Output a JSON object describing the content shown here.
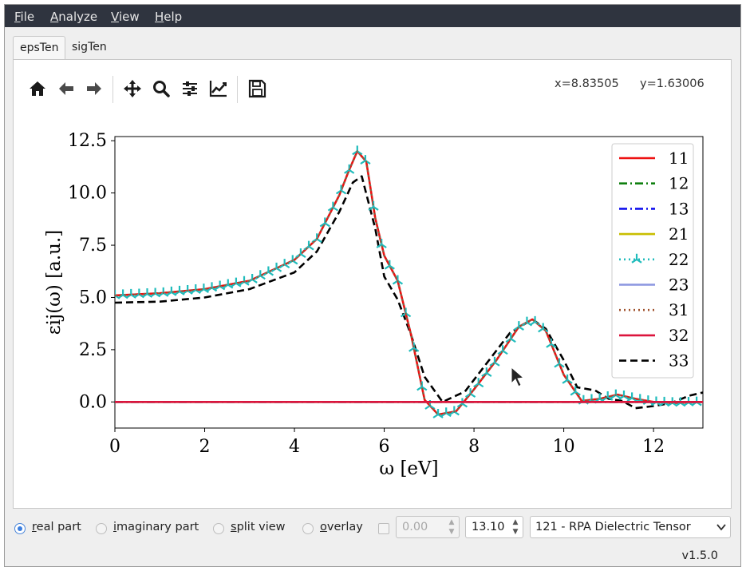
{
  "menubar": {
    "items": [
      {
        "first": "F",
        "rest": "ile"
      },
      {
        "first": "A",
        "rest": "nalyze"
      },
      {
        "first": "V",
        "rest": "iew"
      },
      {
        "first": "H",
        "rest": "elp"
      }
    ]
  },
  "tabs": [
    {
      "label": "epsTen",
      "active": true
    },
    {
      "label": "sigTen",
      "active": false
    }
  ],
  "toolbar": {
    "icons": [
      "home-icon",
      "back-arrow-icon",
      "forward-arrow-icon",
      "pan-icon",
      "zoom-icon",
      "configure-subplots-icon",
      "edit-axis-icon",
      "save-icon"
    ],
    "coord_x": "x=8.83505",
    "coord_y": "y=1.63006"
  },
  "chart_data": {
    "type": "line",
    "xlabel": "ω [eV]",
    "ylabel": "εij(ω) [a.u.]",
    "xlim": [
      0,
      13.1
    ],
    "ylim": [
      -1.25,
      12.7
    ],
    "xticks": [
      "0",
      "2",
      "4",
      "6",
      "8",
      "10",
      "12"
    ],
    "yticks": [
      "0.0",
      "2.5",
      "5.0",
      "7.5",
      "10.0",
      "12.5"
    ],
    "xtick_values": [
      0,
      2,
      4,
      6,
      8,
      10,
      12
    ],
    "ytick_values": [
      0,
      2.5,
      5,
      7.5,
      10,
      12.5
    ],
    "legend_position": "top-right",
    "series": [
      {
        "name": "11",
        "color": "#ee1111",
        "style": "solid",
        "x": [
          0,
          1,
          2,
          3,
          4,
          4.5,
          5,
          5.2,
          5.4,
          5.6,
          5.8,
          6,
          6.3,
          6.6,
          6.9,
          7.2,
          7.6,
          8,
          8.5,
          9,
          9.3,
          9.6,
          10,
          10.4,
          10.8,
          11.2,
          11.6,
          12,
          12.5,
          13.1
        ],
        "y": [
          5.1,
          5.2,
          5.4,
          5.8,
          6.8,
          7.8,
          9.9,
          11.0,
          12.0,
          11.5,
          8.8,
          7.0,
          5.8,
          3.2,
          0.1,
          -0.6,
          -0.45,
          0.6,
          2.0,
          3.6,
          3.95,
          3.4,
          1.3,
          0.05,
          0.15,
          0.35,
          0.15,
          0.0,
          -0.05,
          0.0
        ]
      },
      {
        "name": "12",
        "color": "#108010",
        "style": "dashdot",
        "x": [
          0,
          13.1
        ],
        "y": [
          0,
          0
        ]
      },
      {
        "name": "13",
        "color": "#1010ee",
        "style": "dashdot",
        "x": [
          0,
          13.1
        ],
        "y": [
          0,
          0
        ]
      },
      {
        "name": "21",
        "color": "#c8be00",
        "style": "solid",
        "x": [
          0,
          13.1
        ],
        "y": [
          0,
          0
        ]
      },
      {
        "name": "22",
        "color": "#20bcbc",
        "style": "dotted-tri",
        "x": [
          0,
          1,
          2,
          3,
          4,
          4.5,
          5,
          5.2,
          5.4,
          5.6,
          5.8,
          6,
          6.3,
          6.6,
          6.9,
          7.2,
          7.6,
          8,
          8.5,
          9,
          9.3,
          9.6,
          10,
          10.4,
          10.8,
          11.2,
          11.6,
          12,
          12.5,
          13.1
        ],
        "y": [
          5.1,
          5.2,
          5.4,
          5.8,
          6.8,
          7.8,
          9.9,
          11.0,
          12.0,
          11.5,
          8.8,
          7.0,
          5.8,
          3.2,
          0.1,
          -0.6,
          -0.45,
          0.6,
          2.0,
          3.6,
          3.95,
          3.4,
          1.3,
          0.05,
          0.15,
          0.35,
          0.15,
          0.0,
          -0.05,
          0.0
        ]
      },
      {
        "name": "23",
        "color": "#8c96e0",
        "style": "solid",
        "x": [
          0,
          13.1
        ],
        "y": [
          0,
          0
        ]
      },
      {
        "name": "31",
        "color": "#a0522d",
        "style": "dotted",
        "x": [
          0,
          1,
          2,
          3,
          4,
          4.5,
          5,
          5.2,
          5.4,
          5.6,
          5.8,
          6,
          6.3,
          6.6,
          6.9,
          7.2,
          7.6,
          8,
          8.5,
          9,
          9.3,
          9.6,
          10,
          10.4,
          10.8,
          11.2,
          11.6,
          12,
          12.5,
          13.1
        ],
        "y": [
          5.1,
          5.2,
          5.4,
          5.8,
          6.8,
          7.8,
          9.9,
          11.0,
          12.0,
          11.5,
          8.8,
          7.0,
          5.8,
          3.2,
          0.1,
          -0.6,
          -0.45,
          0.6,
          2.0,
          3.6,
          3.95,
          3.4,
          1.3,
          0.05,
          0.15,
          0.35,
          0.15,
          0.0,
          -0.05,
          0.0
        ]
      },
      {
        "name": "32",
        "color": "#dc143c",
        "style": "solid",
        "x": [
          0,
          13.1
        ],
        "y": [
          0,
          0
        ]
      },
      {
        "name": "33",
        "color": "#000000",
        "style": "dashed",
        "x": [
          0,
          1,
          2,
          3,
          4,
          4.5,
          5,
          5.3,
          5.5,
          5.8,
          6,
          6.3,
          6.6,
          6.9,
          7.3,
          7.8,
          8.3,
          8.8,
          9.3,
          9.6,
          10,
          10.3,
          10.7,
          11,
          11.3,
          11.6,
          12,
          12.4,
          12.8,
          13.1
        ],
        "y": [
          4.75,
          4.8,
          5.0,
          5.4,
          6.2,
          7.2,
          9.1,
          10.5,
          10.8,
          8.3,
          6.0,
          4.9,
          3.2,
          1.2,
          0.0,
          0.5,
          1.9,
          3.3,
          3.95,
          3.5,
          2.0,
          0.7,
          0.55,
          0.15,
          0.05,
          -0.3,
          -0.2,
          -0.05,
          0.3,
          0.45
        ]
      }
    ]
  },
  "controls": {
    "modes": [
      {
        "first": "r",
        "rest": "eal part",
        "checked": true
      },
      {
        "first": "i",
        "rest": "maginary part",
        "checked": false
      },
      {
        "first": "s",
        "rest": "plit view",
        "checked": false
      },
      {
        "first": "o",
        "rest": "verlay",
        "checked": false
      }
    ],
    "min_value": "0.00",
    "max_value": "13.10",
    "dataset": "121 - RPA Dielectric Tensor"
  },
  "version": "v1.5.0"
}
